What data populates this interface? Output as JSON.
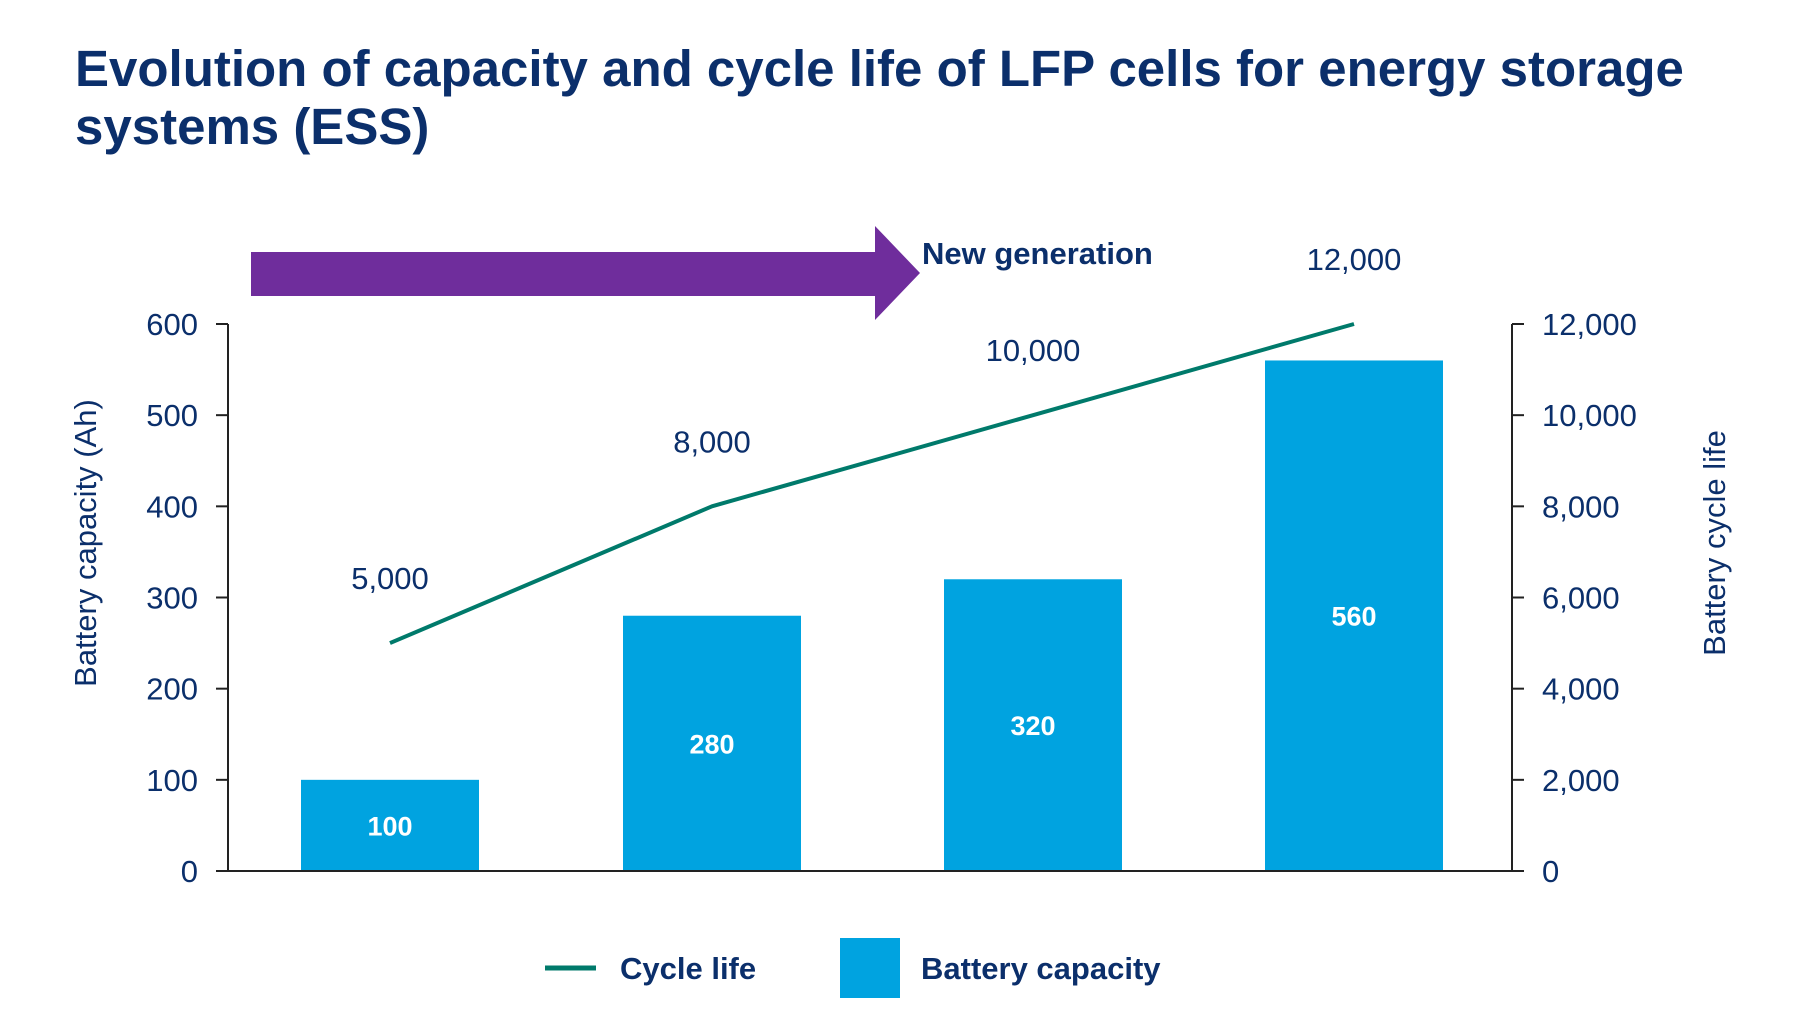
{
  "chart_data": {
    "type": "bar",
    "title": "Evolution of capacity and cycle life of LFP cells for energy storage systems (ESS)",
    "categories": [
      "",
      "",
      "",
      ""
    ],
    "series": [
      {
        "name": "Battery capacity",
        "kind": "bar",
        "axis": "left",
        "values": [
          100,
          280,
          320,
          560
        ]
      },
      {
        "name": "Cycle life",
        "kind": "line",
        "axis": "right",
        "values": [
          5000,
          8000,
          10000,
          12000
        ]
      }
    ],
    "ylabel": "Battery capacity (Ah)",
    "ylim": [
      0,
      600
    ],
    "yticks": [
      "0",
      "100",
      "200",
      "300",
      "400",
      "500",
      "600"
    ],
    "y2label": "Battery cycle life",
    "y2lim": [
      0,
      12000
    ],
    "y2ticks": [
      "0",
      "2,000",
      "4,000",
      "6,000",
      "8,000",
      "10,000",
      "12,000"
    ],
    "bar_labels": [
      "100",
      "280",
      "320",
      "560"
    ],
    "line_labels": [
      "5,000",
      "8,000",
      "10,000",
      "12,000"
    ],
    "annotation": "New generation",
    "legend": {
      "line_label": "Cycle life",
      "bar_label": "Battery capacity",
      "placement": "bottom-center"
    },
    "grid": false,
    "colors": {
      "bar": "#00a3e0",
      "line": "#007a6b",
      "arrow": "#6f2d9c",
      "text": "#0b2f6b",
      "axis": "#222222"
    }
  }
}
